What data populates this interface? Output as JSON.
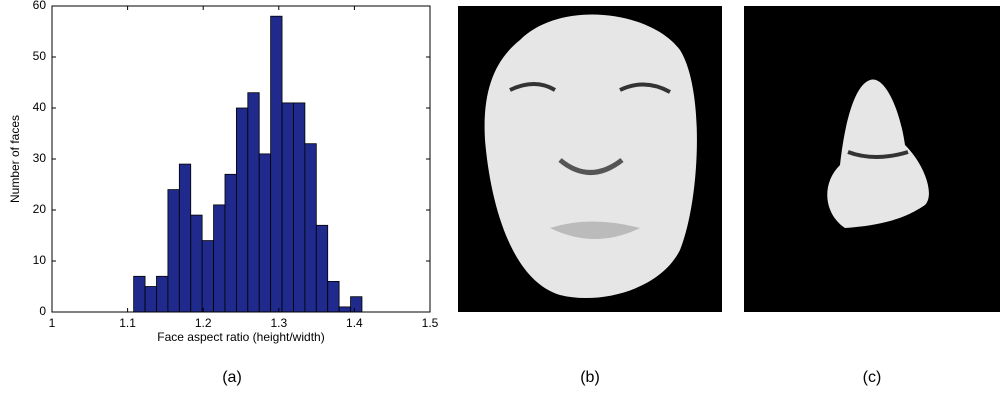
{
  "chart_data": {
    "type": "histogram",
    "xlabel": "Face aspect ratio (height/width)",
    "ylabel": "Number of faces",
    "bins": [
      1.108,
      1.1231,
      1.1382,
      1.1533,
      1.1684,
      1.1835,
      1.1986,
      1.2137,
      1.2288,
      1.2439,
      1.259,
      1.2741,
      1.2892,
      1.3043,
      1.3194,
      1.3345,
      1.3496,
      1.3647,
      1.3798,
      1.3949,
      1.41
    ],
    "values": [
      7,
      5,
      7,
      24,
      29,
      19,
      14,
      21,
      27,
      40,
      43,
      31,
      58,
      41,
      41,
      33,
      17,
      6,
      1,
      3
    ],
    "color": "#1f2a8c",
    "xlim": [
      1,
      1.5
    ],
    "xticks": [
      1,
      1.1,
      1.2,
      1.3,
      1.4,
      1.5
    ],
    "ylim": [
      0,
      60
    ],
    "yticks": [
      0,
      10,
      20,
      30,
      40,
      50,
      60
    ],
    "grid": false
  },
  "captions": [
    "(a)",
    "(b)",
    "(c)"
  ]
}
